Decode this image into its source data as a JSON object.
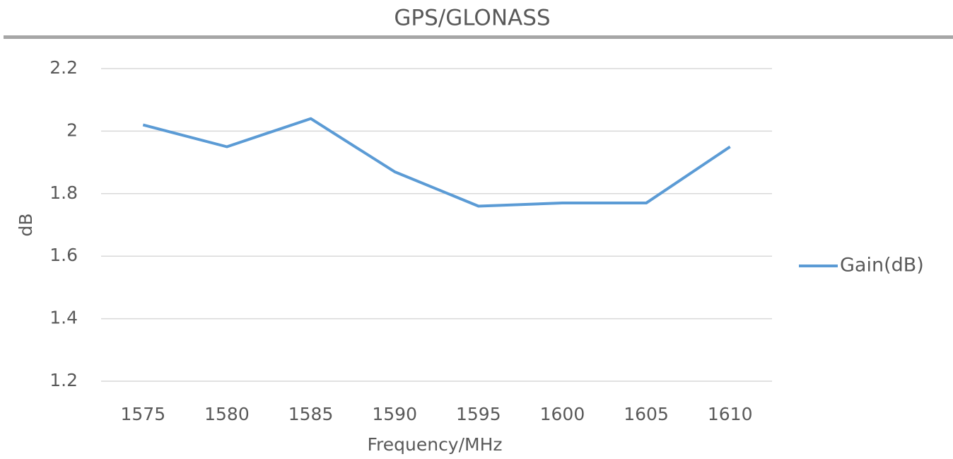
{
  "chart_data": {
    "type": "line",
    "title": "GPS/GLONASS",
    "x_label": "Frequency/MHz",
    "y_label": "dB",
    "categories": [
      "1575",
      "1580",
      "1585",
      "1590",
      "1595",
      "1600",
      "1605",
      "1610"
    ],
    "series": [
      {
        "name": "Gain(dB)",
        "color": "#5b9bd5",
        "values": [
          2.02,
          1.95,
          2.04,
          1.87,
          1.76,
          1.77,
          1.77,
          1.95
        ]
      }
    ],
    "ylim": [
      1.2,
      2.2
    ],
    "yticks": [
      1.2,
      1.4,
      1.6,
      1.8,
      2,
      2.2
    ],
    "grid": true,
    "legend": "right"
  }
}
